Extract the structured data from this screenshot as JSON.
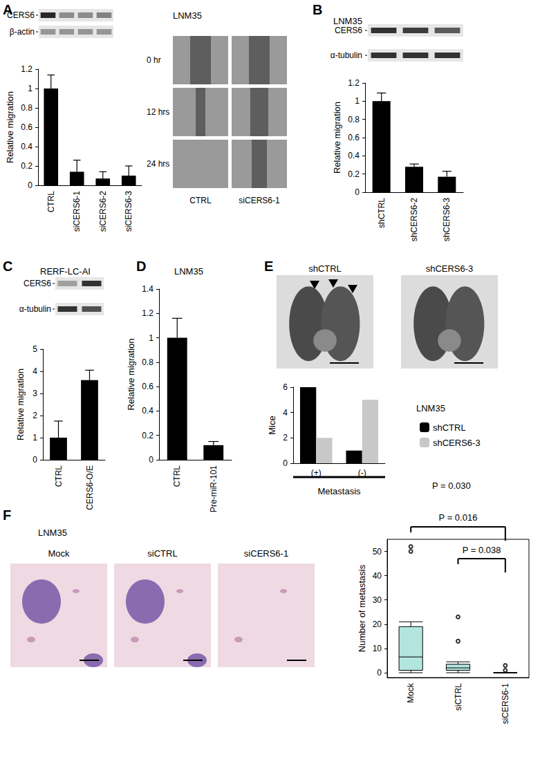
{
  "chart_data": [
    {
      "panel": "A",
      "type": "bar",
      "title": "LNM35",
      "y_label": "Relative migration",
      "categories": [
        "CTRL",
        "siCERS6-1",
        "siCERS6-2",
        "siCERS6-3"
      ],
      "values": [
        1,
        0.14,
        0.07,
        0.1
      ],
      "errors": [
        0.14,
        0.12,
        0.07,
        0.1
      ],
      "color": "#000000",
      "ylim": [
        0,
        1.2
      ],
      "yticks": [
        0,
        0.2,
        0.4,
        0.6,
        0.8,
        1,
        1.2
      ],
      "grid": false,
      "blot_labels": [
        "CERS6",
        "β-actin"
      ],
      "image_rows": [
        "0 hr",
        "12 hrs",
        "24 hrs"
      ],
      "image_columns": [
        "CTRL",
        "siCERS6-1"
      ]
    },
    {
      "panel": "B",
      "type": "bar",
      "title": "LNM35",
      "y_label": "Relative migration",
      "categories": [
        "shCTRL",
        "shCERS6-2",
        "shCERS6-3"
      ],
      "values": [
        1,
        0.28,
        0.17
      ],
      "errors": [
        0.09,
        0.03,
        0.06
      ],
      "color": "#000000",
      "ylim": [
        0,
        1.2
      ],
      "yticks": [
        0,
        0.2,
        0.4,
        0.6,
        0.8,
        1,
        1.2
      ],
      "grid": false,
      "blot_labels": [
        "CERS6",
        "α-tubulin"
      ]
    },
    {
      "panel": "C",
      "type": "bar",
      "title": "RERF-LC-AI",
      "y_label": "Relative migration",
      "categories": [
        "CTRL",
        "CERS6-O/E"
      ],
      "values": [
        1,
        3.6
      ],
      "errors": [
        0.75,
        0.45
      ],
      "color": "#000000",
      "ylim": [
        0,
        5
      ],
      "yticks": [
        0,
        1,
        2,
        3,
        4,
        5
      ],
      "grid": false,
      "blot_labels": [
        "CERS6",
        "α-tubulin"
      ]
    },
    {
      "panel": "D",
      "type": "bar",
      "title": "LNM35",
      "y_label": "Relative migration",
      "categories": [
        "CTRL",
        "Pre-miR-101"
      ],
      "values": [
        1,
        0.12
      ],
      "errors": [
        0.16,
        0.03
      ],
      "color": "#000000",
      "ylim": [
        0,
        1.4
      ],
      "yticks": [
        0,
        0.2,
        0.4,
        0.6,
        0.8,
        1,
        1.2,
        1.4
      ],
      "grid": false
    },
    {
      "panel": "E",
      "type": "bar",
      "title": "LNM35",
      "y_label": "Mice",
      "x_label": "Metastasis",
      "categories": [
        "(+)",
        "(-)"
      ],
      "series": [
        {
          "name": "shCTRL",
          "color": "#000000",
          "values": [
            6,
            1
          ]
        },
        {
          "name": "shCERS6-3",
          "color": "#c8c8c8",
          "values": [
            2,
            5
          ]
        }
      ],
      "ylim": [
        0,
        6
      ],
      "yticks": [
        0,
        2,
        4,
        6
      ],
      "grid": false,
      "legend": "right",
      "image_labels": [
        "shCTRL",
        "shCERS6-3"
      ],
      "annotations": [
        {
          "text": "P = 0.030"
        }
      ]
    },
    {
      "panel": "F",
      "type": "boxplot",
      "title": "LNM35",
      "y_label": "Number of metastasis",
      "categories": [
        "Mock",
        "siCTRL",
        "siCERS6-1"
      ],
      "boxes": [
        [
          0,
          1,
          6.5,
          19,
          21
        ],
        [
          0,
          1,
          2,
          3.5,
          4.5
        ],
        [
          0,
          0,
          0,
          0,
          0
        ]
      ],
      "outliers": [
        [
          50,
          52
        ],
        [
          13,
          23
        ],
        [
          1,
          3
        ]
      ],
      "color": "#b3e5df",
      "ylim": [
        -2,
        55
      ],
      "yticks": [
        0,
        10,
        20,
        30,
        40,
        50
      ],
      "grid": false,
      "image_labels": [
        "Mock",
        "siCTRL",
        "siCERS6-1"
      ],
      "annotations": [
        {
          "text": "P = 0.016",
          "from": "Mock",
          "to": "siCERS6-1"
        },
        {
          "text": "P = 0.038",
          "from": "siCTRL",
          "to": "siCERS6-1"
        }
      ]
    }
  ]
}
